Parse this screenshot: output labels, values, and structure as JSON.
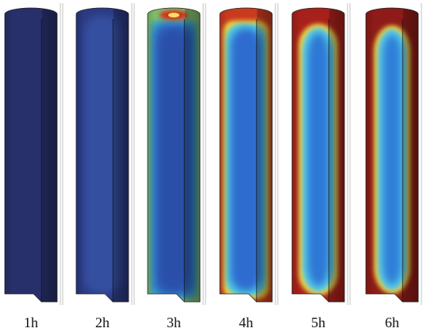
{
  "panels": [
    {
      "label": "1h"
    },
    {
      "label": "2h"
    },
    {
      "label": "3h"
    },
    {
      "label": "4h"
    },
    {
      "label": "5h"
    },
    {
      "label": "6h"
    }
  ]
}
